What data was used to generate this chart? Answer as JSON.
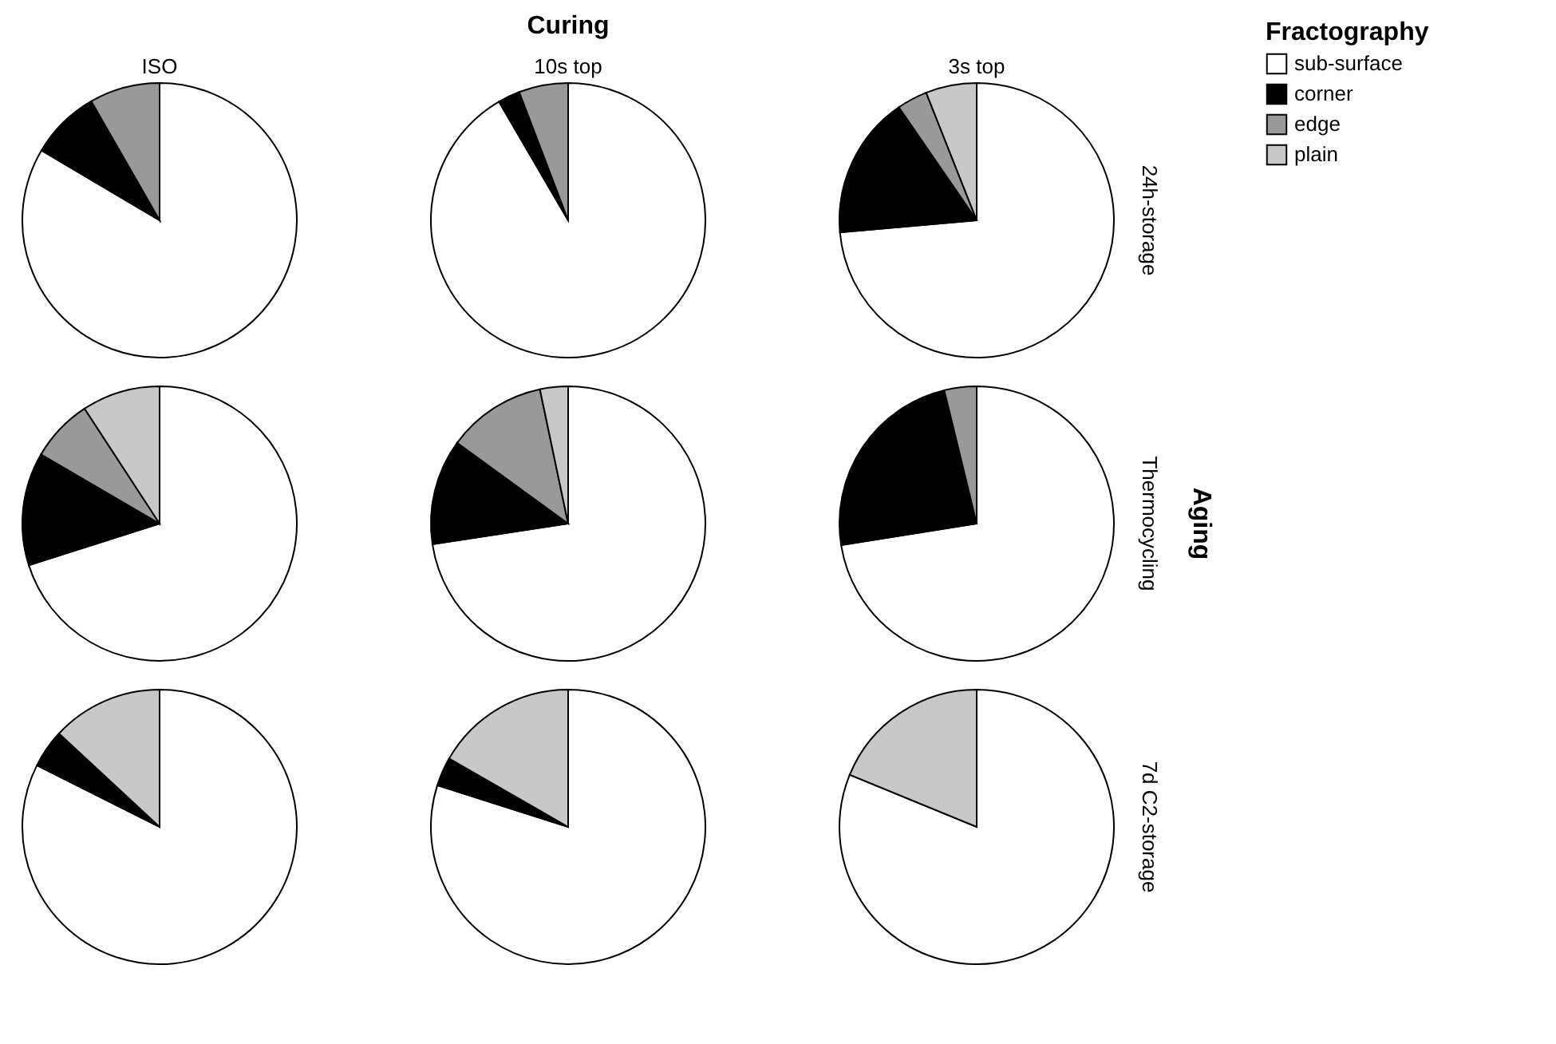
{
  "chart_data": [
    {
      "type": "pie",
      "title": "ISO",
      "categories": [
        null,
        null,
        null
      ],
      "values": [
        83.5,
        8.2,
        8.3
      ],
      "colors": [
        "#ffffff",
        "#000000",
        "#999999"
      ]
    },
    {
      "type": "pie",
      "title": "10s top",
      "annotations": [
        "Curing"
      ],
      "categories": [
        null,
        null,
        null
      ],
      "values": [
        91.6,
        2.6,
        5.8
      ],
      "colors": [
        "#ffffff",
        "#000000",
        "#999999"
      ]
    },
    {
      "type": "pie",
      "title": "3s top",
      "y2label": "24h-storage",
      "legend": "top right",
      "legend_title": "Fractography",
      "categories": [
        "sub-surface",
        "corner",
        "edge",
        "plain"
      ],
      "values": [
        73.6,
        16.8,
        3.6,
        6.0
      ],
      "colors": [
        "#ffffff",
        "#000000",
        "#999999",
        "#c8c8c8"
      ]
    },
    {
      "type": "pie",
      "categories": [
        null,
        null,
        null,
        null
      ],
      "values": [
        70.1,
        13.3,
        7.4,
        9.2
      ],
      "colors": [
        "#ffffff",
        "#000000",
        "#999999",
        "#c8c8c8"
      ]
    },
    {
      "type": "pie",
      "categories": [
        null,
        null,
        null,
        null
      ],
      "values": [
        72.6,
        12.4,
        11.7,
        3.3
      ],
      "colors": [
        "#ffffff",
        "#000000",
        "#999999",
        "#c8c8c8"
      ]
    },
    {
      "type": "pie",
      "y2label": "Thermocycling",
      "annotations": [
        "Aging"
      ],
      "categories": [
        null,
        null,
        null
      ],
      "values": [
        72.5,
        23.7,
        3.8
      ],
      "colors": [
        "#ffffff",
        "#000000",
        "#999999"
      ]
    },
    {
      "type": "pie",
      "categories": [
        null,
        null,
        null
      ],
      "values": [
        82.4,
        4.5,
        13.1
      ],
      "colors": [
        "#ffffff",
        "#000000",
        "#c8c8c8"
      ]
    },
    {
      "type": "pie",
      "categories": [
        null,
        null,
        null
      ],
      "values": [
        79.9,
        3.4,
        16.7
      ],
      "colors": [
        "#ffffff",
        "#000000",
        "#c8c8c8"
      ]
    },
    {
      "type": "pie",
      "y2label": "7d C2-storage",
      "categories": [
        null,
        null
      ],
      "values": [
        81.2,
        18.8
      ],
      "colors": [
        "#ffffff",
        "#c8c8c8"
      ]
    }
  ]
}
